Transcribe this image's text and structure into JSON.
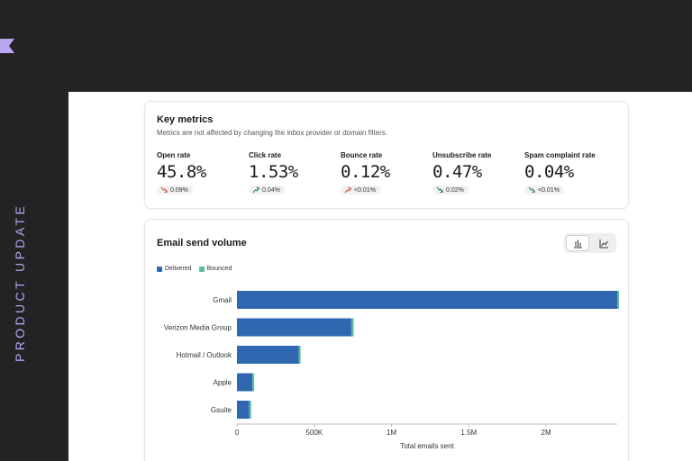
{
  "sidebar": {
    "vertical_label": "PRODUCT UPDATE"
  },
  "key_metrics": {
    "title": "Key metrics",
    "subtitle": "Metrics are not affected by changing the inbox provider or domain filters.",
    "metrics": [
      {
        "label": "Open rate",
        "value": "45.8%",
        "delta": "0.09%",
        "trend": "down"
      },
      {
        "label": "Click rate",
        "value": "1.53%",
        "delta": "0.04%",
        "trend": "up"
      },
      {
        "label": "Bounce rate",
        "value": "0.12%",
        "delta": "<0.01%",
        "trend": "up"
      },
      {
        "label": "Unsubscribe rate",
        "value": "0.47%",
        "delta": "0.02%",
        "trend": "down"
      },
      {
        "label": "Spam complaint rate",
        "value": "0.04%",
        "delta": "<0.01%",
        "trend": "down"
      }
    ]
  },
  "colors": {
    "delivered": "#2f68b1",
    "bounced": "#5bbf98",
    "trend_bad": "#d9534f",
    "trend_good": "#2e8b57",
    "accent_rail_text": "#b8a6ee"
  },
  "chart_data": {
    "type": "bar",
    "orientation": "horizontal",
    "stacked": true,
    "title": "Email send volume",
    "categories": [
      "Gmail",
      "Verizon Media Group",
      "Hotmail / Outlook",
      "Apple",
      "Gsuite"
    ],
    "series": [
      {
        "name": "Delivered",
        "values": [
          2460000,
          740000,
          400000,
          100000,
          80000
        ]
      },
      {
        "name": "Bounced",
        "values": [
          5000,
          15000,
          8000,
          10000,
          10000
        ]
      }
    ],
    "xlabel": "Total emails sent",
    "ylabel": "",
    "xlim": [
      0,
      2460000
    ],
    "xticks": [
      0,
      500000,
      1000000,
      1500000,
      2000000
    ],
    "xtick_labels": [
      "0",
      "500K",
      "1M",
      "1.5M",
      "2M"
    ],
    "legend": "top-left"
  }
}
